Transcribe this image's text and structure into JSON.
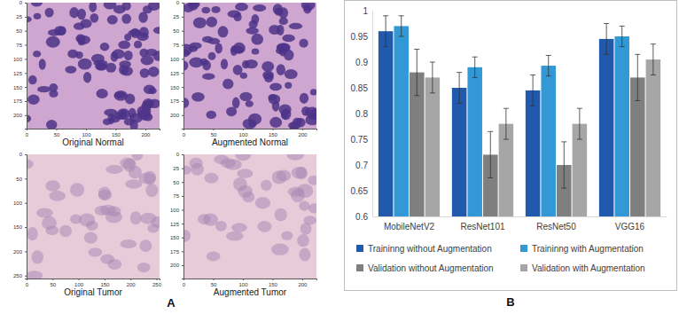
{
  "panel_labels": [
    "A",
    "B"
  ],
  "chart_data": [
    {
      "type": "image",
      "title": "Original Normal",
      "xlim": [
        0,
        224
      ],
      "ylim": [
        0,
        224
      ],
      "xticks": [
        0,
        50,
        100,
        150,
        200
      ],
      "yticks": [
        0,
        25,
        50,
        75,
        100,
        125,
        150,
        175,
        200
      ]
    },
    {
      "type": "image",
      "title": "Augmented Normal",
      "xlim": [
        0,
        224
      ],
      "ylim": [
        0,
        224
      ],
      "xticks": [
        0,
        50,
        100,
        150,
        200
      ],
      "yticks": [
        0,
        25,
        50,
        75,
        100,
        125,
        150,
        175,
        200
      ]
    },
    {
      "type": "image",
      "title": "Original Tumor",
      "xlim": [
        0,
        256
      ],
      "ylim": [
        0,
        256
      ],
      "xticks": [
        0,
        50,
        100,
        150,
        200,
        250
      ],
      "yticks": [
        0,
        50,
        100,
        150,
        200,
        250
      ]
    },
    {
      "type": "image",
      "title": "Augmented Tumor",
      "xlim": [
        0,
        224
      ],
      "ylim": [
        0,
        224
      ],
      "xticks": [
        0,
        50,
        100,
        150,
        200
      ],
      "yticks": [
        0,
        25,
        50,
        75,
        100,
        125,
        150,
        175,
        200
      ]
    },
    {
      "type": "bar",
      "categories": [
        "MobileNetV2",
        "ResNet101",
        "ResNet50",
        "VGG16"
      ],
      "series": [
        {
          "name": "Traininng without Augmentation",
          "color": "#2159ac",
          "values": [
            0.96,
            0.85,
            0.845,
            0.945
          ],
          "errors": [
            0.03,
            0.03,
            0.03,
            0.03
          ]
        },
        {
          "name": "Traininng with Augmentation",
          "color": "#3399d6",
          "values": [
            0.97,
            0.89,
            0.893,
            0.95
          ],
          "errors": [
            0.02,
            0.02,
            0.02,
            0.02
          ]
        },
        {
          "name": "Validation without Augmentation",
          "color": "#7f7f7f",
          "values": [
            0.88,
            0.72,
            0.7,
            0.87
          ],
          "errors": [
            0.045,
            0.045,
            0.045,
            0.045
          ]
        },
        {
          "name": "Validation with Augmentation",
          "color": "#a6a6a6",
          "values": [
            0.87,
            0.78,
            0.78,
            0.905
          ],
          "errors": [
            0.03,
            0.03,
            0.03,
            0.03
          ]
        }
      ],
      "ylim": [
        0.6,
        1
      ],
      "yticks": [
        0.6,
        0.65,
        0.7,
        0.75,
        0.8,
        0.85,
        0.9,
        0.95,
        1
      ],
      "legend": "bottom",
      "grid": false
    }
  ]
}
